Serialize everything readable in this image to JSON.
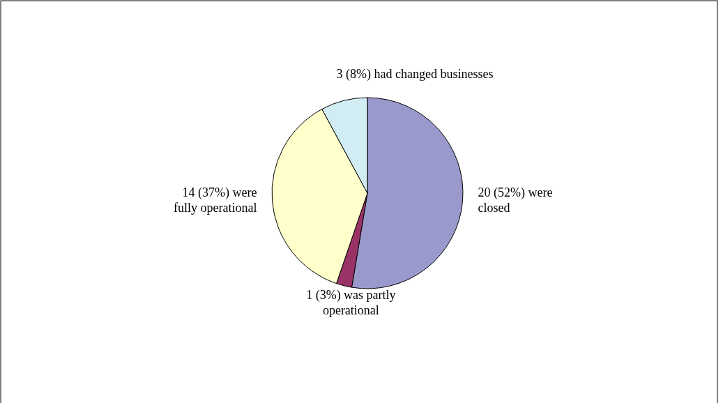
{
  "chart_data": {
    "type": "pie",
    "categories": [
      "20 (52%) were closed",
      "1 (3%) was partly operational",
      "14 (37%) were fully operational",
      "3 (8%) had changed businesses"
    ],
    "values": [
      20,
      1,
      14,
      3
    ],
    "colors": [
      "#9999cc",
      "#993366",
      "#ffffcc",
      "#d1ecf2"
    ]
  }
}
